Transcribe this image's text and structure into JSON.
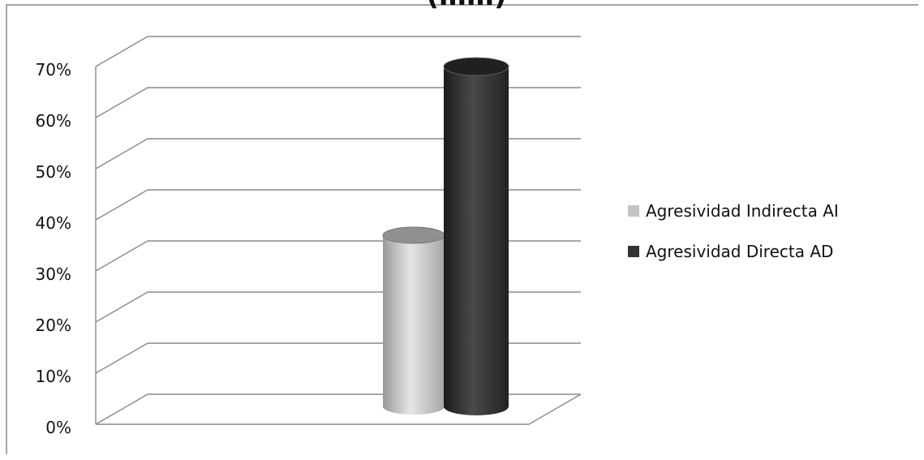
{
  "chart_data": {
    "type": "bar",
    "title": "(……)",
    "categories": [
      ""
    ],
    "series": [
      {
        "name": "Agresividad Indirecta AI",
        "values": [
          33.5
        ],
        "color": "#c4c4c4"
      },
      {
        "name": "Agresividad Directa AD",
        "values": [
          66.5
        ],
        "color": "#333333"
      }
    ],
    "ylim": [
      0,
      70
    ],
    "y_ticks": [
      0,
      10,
      20,
      30,
      40,
      50,
      60,
      70
    ],
    "y_tick_labels": [
      "0%",
      "10%",
      "20%",
      "30%",
      "40%",
      "50%",
      "60%",
      "70%"
    ],
    "grid": true,
    "legend_position": "right",
    "bar_shape": "3d-cylinder"
  }
}
